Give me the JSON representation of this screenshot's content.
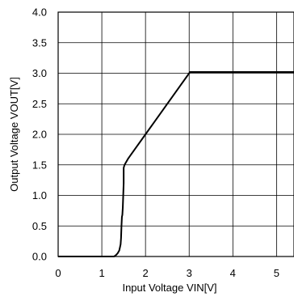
{
  "chart_data": {
    "type": "line",
    "xlabel": "Input Voltage VIN[V]",
    "ylabel": "Output Voltage VOUT[V]",
    "xlim": [
      0,
      5.4
    ],
    "ylim": [
      0,
      4.0
    ],
    "x_ticks": [
      0,
      1,
      2,
      3,
      4,
      5
    ],
    "y_ticks": [
      0.0,
      0.5,
      1.0,
      1.5,
      2.0,
      2.5,
      3.0,
      3.5,
      4.0
    ],
    "x_tick_labels": [
      "0",
      "1",
      "2",
      "3",
      "4",
      "5"
    ],
    "y_tick_labels": [
      "0.0",
      "0.5",
      "1.0",
      "1.5",
      "2.0",
      "2.5",
      "3.0",
      "3.5",
      "4.0"
    ],
    "grid": true,
    "series": [
      {
        "x": [
          0,
          1.28,
          1.32,
          1.36,
          1.4,
          1.43,
          1.44,
          1.45,
          1.46,
          1.47,
          1.48,
          1.49,
          1.5,
          1.5,
          1.52,
          1.6,
          1.8,
          2.0,
          2.2,
          2.4,
          2.6,
          2.8,
          3.0,
          3.02,
          3.05,
          3.5,
          4.0,
          4.5,
          5.0,
          5.4
        ],
        "y": [
          0,
          0,
          0.02,
          0.05,
          0.1,
          0.2,
          0.3,
          0.5,
          0.65,
          0.68,
          0.8,
          1.0,
          1.2,
          1.45,
          1.5,
          1.6,
          1.8,
          2.0,
          2.2,
          2.4,
          2.6,
          2.8,
          3.0,
          3.02,
          3.02,
          3.02,
          3.02,
          3.02,
          3.02,
          3.02
        ]
      }
    ]
  }
}
